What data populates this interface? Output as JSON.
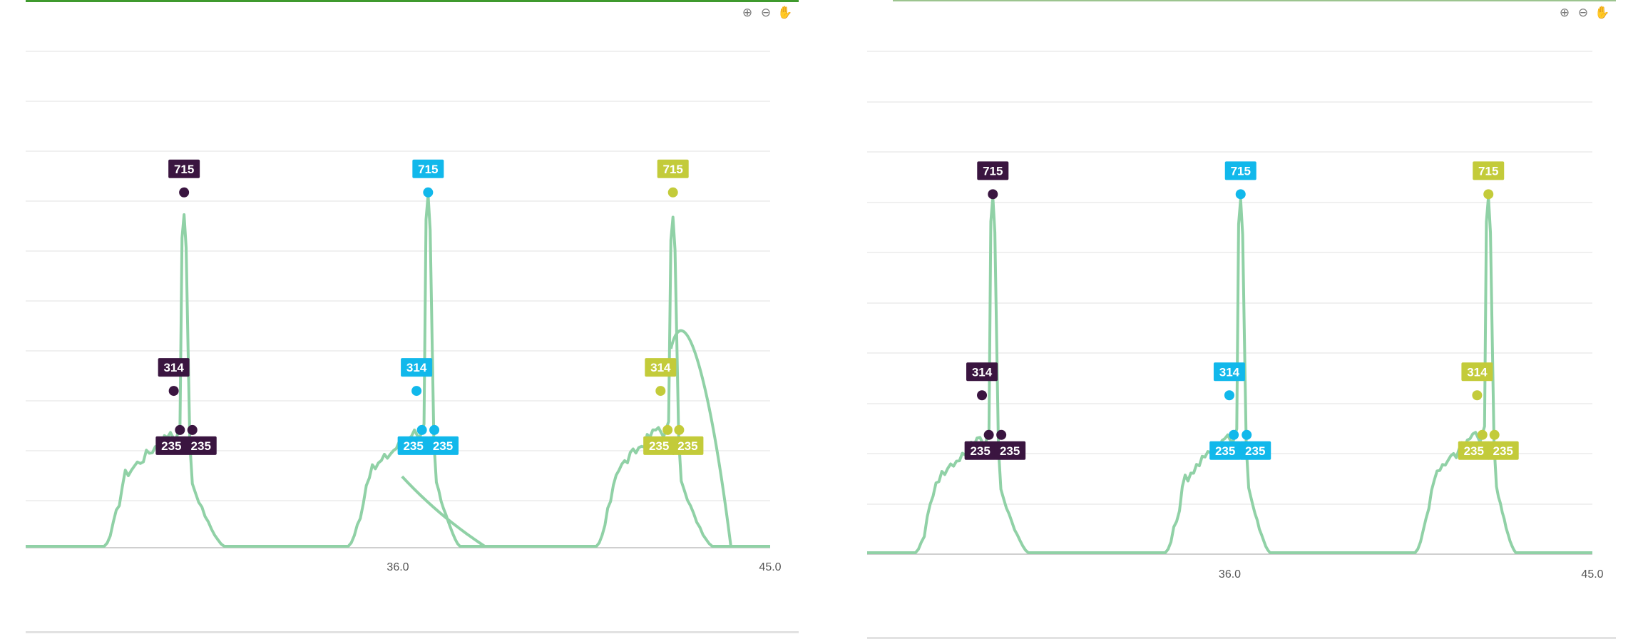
{
  "colors": {
    "curve": "#90d1a6",
    "gridline": "#ececec",
    "axis": "#cfcfcf",
    "series_dark": "#3a1540",
    "series_cyan": "#11b8eb",
    "series_olive": "#c3cb3a"
  },
  "toolbar": {
    "zoom_in_icon": "zoom-in-icon",
    "zoom_out_icon": "zoom-out-icon",
    "pan_icon": "pan-hand-icon"
  },
  "chart_data": [
    {
      "type": "line",
      "title": "",
      "xlabel": "",
      "ylabel": "",
      "xlim": [
        27.0,
        45.0
      ],
      "ylim": [
        0,
        1000
      ],
      "grid": true,
      "x_tick_labels": [
        {
          "value": 36.0,
          "label": "36.0"
        },
        {
          "value": 45.0,
          "label": "45.0"
        }
      ],
      "markers": [
        {
          "series": "series_dark",
          "x": 30.83,
          "y": 715,
          "label": "715"
        },
        {
          "series": "series_dark",
          "x": 30.58,
          "y": 314,
          "label": "314"
        },
        {
          "series": "series_dark",
          "x": 30.73,
          "y": 235,
          "label": "235"
        },
        {
          "series": "series_dark",
          "x": 31.03,
          "y": 235,
          "label": "235"
        },
        {
          "series": "series_cyan",
          "x": 36.73,
          "y": 715,
          "label": "715"
        },
        {
          "series": "series_cyan",
          "x": 36.45,
          "y": 314,
          "label": "314"
        },
        {
          "series": "series_cyan",
          "x": 36.58,
          "y": 235,
          "label": "235"
        },
        {
          "series": "series_cyan",
          "x": 36.88,
          "y": 235,
          "label": "235"
        },
        {
          "series": "series_olive",
          "x": 42.65,
          "y": 715,
          "label": "715"
        },
        {
          "series": "series_olive",
          "x": 42.35,
          "y": 314,
          "label": "314"
        },
        {
          "series": "series_olive",
          "x": 42.52,
          "y": 235,
          "label": "235"
        },
        {
          "series": "series_olive",
          "x": 42.8,
          "y": 235,
          "label": "235"
        }
      ],
      "peaks": [
        {
          "rise_start": 28.9,
          "shoulder_x": 30.5,
          "shoulder_y": 230,
          "apex_x": 30.83,
          "apex_y": 670,
          "fall_end": 31.8,
          "extra_overlay": null
        },
        {
          "rise_start": 34.8,
          "shoulder_x": 36.4,
          "shoulder_y": 235,
          "apex_x": 36.73,
          "apex_y": 710,
          "fall_end": 37.5,
          "extra_overlay": "slow-decay"
        },
        {
          "rise_start": 40.8,
          "shoulder_x": 42.3,
          "shoulder_y": 240,
          "apex_x": 42.65,
          "apex_y": 665,
          "fall_end": 43.6,
          "extra_overlay": "broad-hump"
        }
      ]
    },
    {
      "type": "line",
      "title": "",
      "xlabel": "",
      "ylabel": "",
      "xlim": [
        27.0,
        45.0
      ],
      "ylim": [
        0,
        1000
      ],
      "grid": true,
      "x_tick_labels": [
        {
          "value": 36.0,
          "label": "36.0"
        },
        {
          "value": 45.0,
          "label": "45.0"
        }
      ],
      "markers": [
        {
          "series": "series_dark",
          "x": 30.12,
          "y": 715,
          "label": "715"
        },
        {
          "series": "series_dark",
          "x": 29.85,
          "y": 314,
          "label": "314"
        },
        {
          "series": "series_dark",
          "x": 30.02,
          "y": 235,
          "label": "235"
        },
        {
          "series": "series_dark",
          "x": 30.33,
          "y": 235,
          "label": "235"
        },
        {
          "series": "series_cyan",
          "x": 36.27,
          "y": 715,
          "label": "715"
        },
        {
          "series": "series_cyan",
          "x": 35.99,
          "y": 314,
          "label": "314"
        },
        {
          "series": "series_cyan",
          "x": 36.1,
          "y": 235,
          "label": "235"
        },
        {
          "series": "series_cyan",
          "x": 36.42,
          "y": 235,
          "label": "235"
        },
        {
          "series": "series_olive",
          "x": 42.42,
          "y": 715,
          "label": "715"
        },
        {
          "series": "series_olive",
          "x": 42.14,
          "y": 314,
          "label": "314"
        },
        {
          "series": "series_olive",
          "x": 42.27,
          "y": 235,
          "label": "235"
        },
        {
          "series": "series_olive",
          "x": 42.57,
          "y": 235,
          "label": "235"
        }
      ],
      "peaks": [
        {
          "rise_start": 28.2,
          "shoulder_x": 29.8,
          "shoulder_y": 230,
          "apex_x": 30.12,
          "apex_y": 710,
          "fall_end": 31.0,
          "extra_overlay": null
        },
        {
          "rise_start": 34.4,
          "shoulder_x": 35.95,
          "shoulder_y": 235,
          "apex_x": 36.27,
          "apex_y": 705,
          "fall_end": 37.0,
          "extra_overlay": null
        },
        {
          "rise_start": 40.6,
          "shoulder_x": 42.1,
          "shoulder_y": 240,
          "apex_x": 42.42,
          "apex_y": 710,
          "fall_end": 43.1,
          "extra_overlay": null
        }
      ]
    }
  ]
}
